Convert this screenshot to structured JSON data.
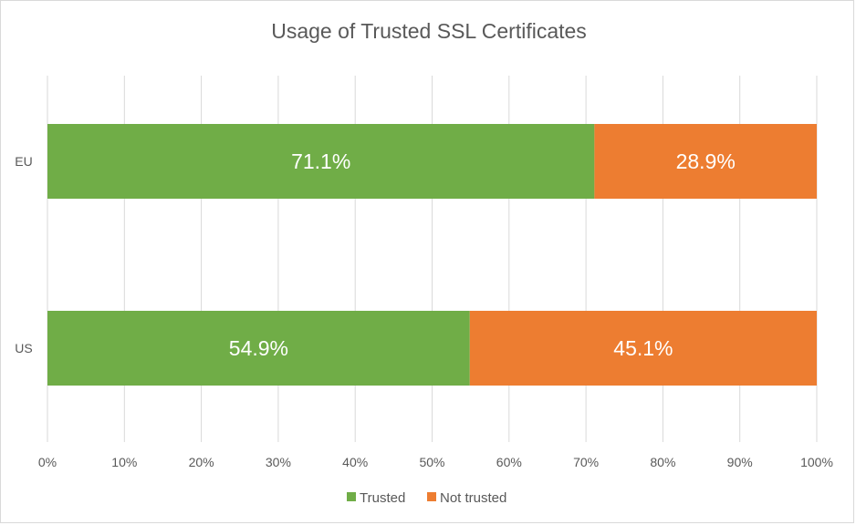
{
  "chart_data": {
    "type": "bar",
    "orientation": "horizontal",
    "stacked": "percent",
    "title": "Usage of Trusted SSL Certificates",
    "categories": [
      "EU",
      "US"
    ],
    "series": [
      {
        "name": "Trusted",
        "values": [
          71.1,
          54.9
        ],
        "labels": [
          "71.1%",
          "54.9%"
        ],
        "color": "#70ad47"
      },
      {
        "name": "Not trusted",
        "values": [
          28.9,
          45.1
        ],
        "labels": [
          "28.9%",
          "45.1%"
        ],
        "color": "#ed7d31"
      }
    ],
    "xlim": [
      0,
      100
    ],
    "x_ticks": [
      0,
      10,
      20,
      30,
      40,
      50,
      60,
      70,
      80,
      90,
      100
    ],
    "x_tick_labels": [
      "0%",
      "10%",
      "20%",
      "30%",
      "40%",
      "50%",
      "60%",
      "70%",
      "80%",
      "90%",
      "100%"
    ],
    "grid": true,
    "legend_position": "bottom",
    "xlabel": "",
    "ylabel": ""
  }
}
